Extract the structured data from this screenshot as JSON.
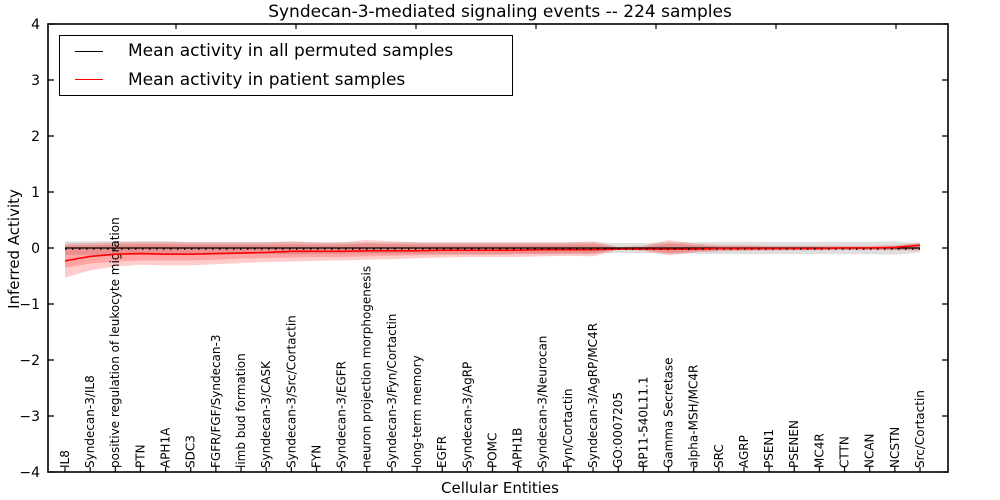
{
  "figure": {
    "title": "Syndecan-3-mediated signaling events -- 224 samples",
    "xlabel": "Cellular Entities",
    "ylabel": "Inferred Activity"
  },
  "legend": {
    "position": "upper left",
    "items": [
      {
        "label": "Mean activity in all permuted samples",
        "color": "#000000"
      },
      {
        "label": "Mean activity in patient samples",
        "color": "#ff0000"
      }
    ]
  },
  "chart_data": {
    "type": "line",
    "title": "Syndecan-3-mediated signaling events -- 224 samples",
    "xlabel": "Cellular Entities",
    "ylabel": "Inferred Activity",
    "ylim": [
      -4,
      4
    ],
    "yticks": [
      4,
      3,
      2,
      1,
      0,
      -1,
      -2,
      -3,
      -4
    ],
    "grid": false,
    "legend_position": "upper left",
    "zero_line": {
      "style": "dotted",
      "color": "#000000",
      "y": 0
    },
    "categories": [
      "IL8",
      "Syndecan-3/IL8",
      "positive regulation of leukocyte migration",
      "PTN",
      "APH1A",
      "SDC3",
      "FGFR/FGF/Syndecan-3",
      "limb bud formation",
      "Syndecan-3/CASK",
      "Syndecan-3/Src/Cortactin",
      "FYN",
      "Syndecan-3/EGFR",
      "neuron projection morphogenesis",
      "Syndecan-3/Fyn/Cortactin",
      "long-term memory",
      "EGFR",
      "Syndecan-3/AgRP",
      "POMC",
      "APH1B",
      "Syndecan-3/Neurocan",
      "Fyn/Cortactin",
      "Syndecan-3/AgRP/MC4R",
      "GO:0007205",
      "RP11-540L11.1",
      "Gamma Secretase",
      "alpha-MSH/MC4R",
      "SRC",
      "AGRP",
      "PSEN1",
      "PSENEN",
      "MC4R",
      "CTTN",
      "NCAN",
      "NCSTN",
      "Src/Cortactin"
    ],
    "series": [
      {
        "name": "Mean activity in all permuted samples",
        "color": "#000000",
        "values": [
          0,
          0,
          0,
          0,
          0,
          0,
          0,
          0,
          0,
          0,
          0,
          0,
          0,
          0,
          0,
          0,
          0,
          0,
          0,
          0,
          0,
          0,
          0,
          0,
          0,
          0,
          0,
          0,
          0,
          0,
          0,
          0,
          0,
          0,
          0
        ]
      },
      {
        "name": "Mean activity in patient samples",
        "color": "#ff0000",
        "values": [
          -0.23,
          -0.15,
          -0.11,
          -0.1,
          -0.11,
          -0.11,
          -0.1,
          -0.09,
          -0.08,
          -0.06,
          -0.06,
          -0.06,
          -0.05,
          -0.05,
          -0.05,
          -0.04,
          -0.04,
          -0.04,
          -0.04,
          -0.03,
          -0.03,
          -0.03,
          -0.02,
          -0.02,
          -0.02,
          -0.02,
          -0.01,
          -0.01,
          -0.01,
          -0.01,
          -0.01,
          0.0,
          0.0,
          0.01,
          0.05
        ]
      }
    ],
    "bands": [
      {
        "name": "permuted-samples-range",
        "color": "#808080",
        "opacity": 0.25,
        "lower": [
          -0.12,
          -0.12,
          -0.12,
          -0.12,
          -0.12,
          -0.11,
          -0.11,
          -0.11,
          -0.11,
          -0.11,
          -0.1,
          -0.1,
          -0.1,
          -0.1,
          -0.1,
          -0.1,
          -0.1,
          -0.1,
          -0.1,
          -0.1,
          -0.1,
          -0.1,
          -0.09,
          -0.09,
          -0.1,
          -0.1,
          -0.11,
          -0.11,
          -0.11,
          -0.11,
          -0.11,
          -0.11,
          -0.11,
          -0.12,
          -0.08
        ],
        "upper": [
          0.12,
          0.12,
          0.12,
          0.12,
          0.12,
          0.11,
          0.11,
          0.11,
          0.11,
          0.11,
          0.1,
          0.1,
          0.1,
          0.1,
          0.1,
          0.1,
          0.1,
          0.1,
          0.1,
          0.1,
          0.1,
          0.1,
          0.09,
          0.09,
          0.1,
          0.1,
          0.11,
          0.11,
          0.11,
          0.11,
          0.11,
          0.11,
          0.11,
          0.12,
          0.08
        ]
      },
      {
        "name": "patient-samples-range-outer",
        "color": "#ff0000",
        "opacity": 0.2,
        "lower": [
          -0.53,
          -0.4,
          -0.33,
          -0.3,
          -0.31,
          -0.31,
          -0.29,
          -0.27,
          -0.25,
          -0.24,
          -0.23,
          -0.22,
          -0.21,
          -0.2,
          -0.18,
          -0.17,
          -0.16,
          -0.16,
          -0.16,
          -0.15,
          -0.14,
          -0.15,
          -0.03,
          -0.05,
          -0.13,
          -0.08,
          -0.06,
          -0.05,
          -0.05,
          -0.04,
          -0.04,
          -0.04,
          -0.04,
          -0.04,
          -0.05
        ],
        "upper": [
          0.08,
          0.09,
          0.1,
          0.11,
          0.11,
          0.1,
          0.1,
          0.1,
          0.1,
          0.12,
          0.1,
          0.1,
          0.14,
          0.12,
          0.1,
          0.1,
          0.1,
          0.1,
          0.1,
          0.1,
          0.1,
          0.12,
          0.02,
          0.04,
          0.14,
          0.08,
          0.05,
          0.05,
          0.04,
          0.04,
          0.04,
          0.04,
          0.04,
          0.05,
          0.1
        ],
        "lower2": [
          -0.35,
          -0.28,
          -0.24,
          -0.22,
          -0.22,
          -0.22,
          -0.21,
          -0.19,
          -0.18,
          -0.17,
          -0.16,
          -0.16,
          -0.15,
          -0.14,
          -0.13,
          -0.12,
          -0.12,
          -0.12,
          -0.11,
          -0.11,
          -0.1,
          -0.1,
          -0.02,
          -0.03,
          -0.09,
          -0.06,
          -0.04,
          -0.04,
          -0.03,
          -0.03,
          -0.03,
          -0.03,
          -0.03,
          -0.03,
          -0.03
        ],
        "upper2": [
          0.04,
          0.05,
          0.06,
          0.07,
          0.07,
          0.06,
          0.06,
          0.06,
          0.06,
          0.07,
          0.06,
          0.06,
          0.08,
          0.07,
          0.06,
          0.06,
          0.06,
          0.06,
          0.06,
          0.06,
          0.06,
          0.07,
          0.01,
          0.02,
          0.08,
          0.05,
          0.03,
          0.03,
          0.02,
          0.02,
          0.02,
          0.02,
          0.02,
          0.03,
          0.06
        ]
      }
    ]
  }
}
